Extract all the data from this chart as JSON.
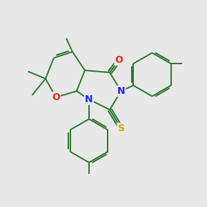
{
  "background_color": "#e8e8e8",
  "bond_color": "#2d6e2d",
  "bond_width": 1.4,
  "N_color": "#2020ff",
  "O_color": "#ff2020",
  "S_color": "#ccaa00",
  "figsize": [
    3.0,
    3.0
  ],
  "dpi": 100,
  "xlim": [
    0,
    10
  ],
  "ylim": [
    0,
    10
  ]
}
